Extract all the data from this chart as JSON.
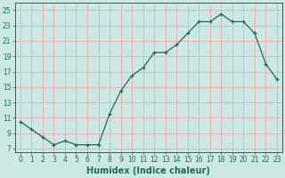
{
  "x": [
    0,
    1,
    2,
    3,
    4,
    5,
    6,
    7,
    8,
    9,
    10,
    11,
    12,
    13,
    14,
    15,
    16,
    17,
    18,
    19,
    20,
    21,
    22,
    23
  ],
  "y": [
    10.5,
    9.5,
    8.5,
    7.5,
    8.0,
    7.5,
    7.5,
    7.5,
    11.5,
    14.5,
    16.5,
    17.5,
    19.5,
    19.5,
    20.5,
    22.0,
    23.5,
    23.5,
    24.5,
    23.5,
    23.5,
    22.0,
    18.0,
    16.0
  ],
  "xlabel": "Humidex (Indice chaleur)",
  "xlim": [
    -0.5,
    23.5
  ],
  "ylim": [
    6.5,
    26.0
  ],
  "yticks": [
    7,
    9,
    11,
    13,
    15,
    17,
    19,
    21,
    23,
    25
  ],
  "xticks": [
    0,
    1,
    2,
    3,
    4,
    5,
    6,
    7,
    8,
    9,
    10,
    11,
    12,
    13,
    14,
    15,
    16,
    17,
    18,
    19,
    20,
    21,
    22,
    23
  ],
  "line_color": "#1a6b5a",
  "marker": "+",
  "bg_color": "#cce8e4",
  "grid_color": "#f0b0b0",
  "face_color": "#cce8e4",
  "tick_font_size": 5.5,
  "xlabel_font_size": 7.0
}
